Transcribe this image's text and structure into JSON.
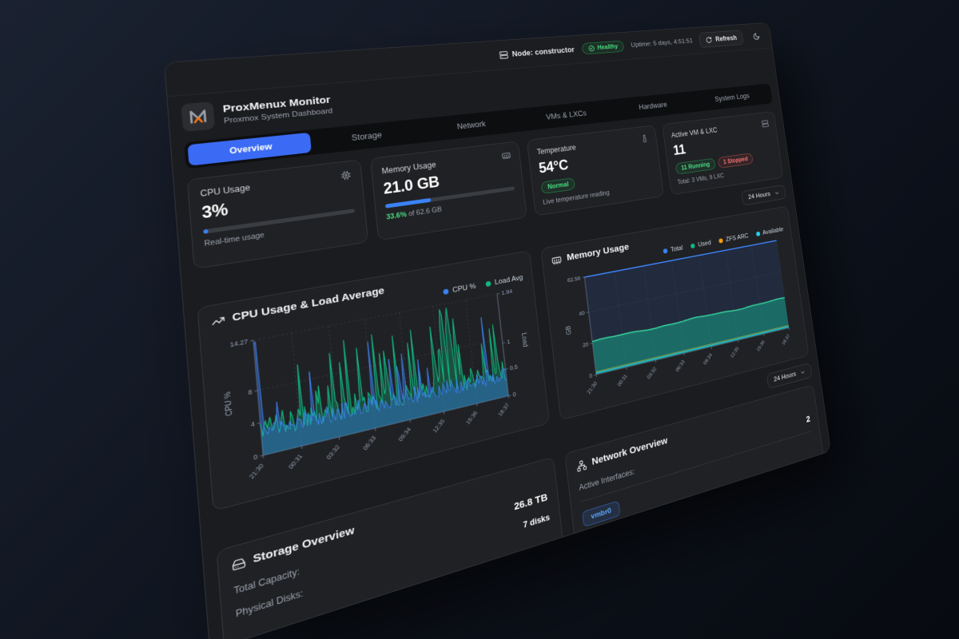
{
  "topbar": {
    "node_label": "Node: constructor",
    "health_badge": "Healthy",
    "uptime": "Uptime: 5 days, 4:51:51",
    "refresh_label": "Refresh"
  },
  "header": {
    "title": "ProxMenux Monitor",
    "subtitle": "Proxmox System Dashboard"
  },
  "tabs": {
    "items": [
      {
        "label": "Overview",
        "active": true
      },
      {
        "label": "Storage"
      },
      {
        "label": "Network"
      },
      {
        "label": "VMs & LXCs"
      },
      {
        "label": "Hardware"
      },
      {
        "label": "System Logs"
      }
    ]
  },
  "stats": {
    "cpu": {
      "label": "CPU Usage",
      "value": "3%",
      "percent": 3,
      "caption": "Real-time usage"
    },
    "memory": {
      "label": "Memory Usage",
      "value": "21.0 GB",
      "percent": 33.6,
      "caption_highlight": "33.6%",
      "caption_rest": " of 62.6 GB"
    },
    "temperature": {
      "label": "Temperature",
      "value": "54°C",
      "badge": "Normal",
      "caption": "Live temperature reading"
    },
    "vms": {
      "label": "Active VM & LXC",
      "value": "11",
      "running_badge": "11 Running",
      "stopped_badge": "1 Stopped",
      "caption": "Total: 3 VMs, 9 LXC"
    }
  },
  "range_selector": {
    "value": "24 Hours"
  },
  "charts": {
    "cpu": {
      "title": "CPU Usage & Load Average",
      "legend": [
        {
          "label": "CPU %",
          "color": "#3b82f6"
        },
        {
          "label": "Load Avg",
          "color": "#10b981"
        }
      ],
      "y_left_label": "CPU %",
      "y_right_label": "Load",
      "y_left_max": 14.27,
      "y_right_max": 1.94,
      "y_left_ticks": [
        [
          14.27,
          "14.27"
        ],
        [
          8,
          "8"
        ],
        [
          4,
          "4"
        ],
        [
          0,
          "0"
        ]
      ],
      "y_right_ticks": [
        [
          1.94,
          "1.94"
        ],
        [
          1,
          "1"
        ],
        [
          0.5,
          "0.5"
        ],
        [
          0,
          "0"
        ]
      ],
      "x_labels": [
        "21:30",
        "00:31",
        "03:32",
        "06:33",
        "09:34",
        "12:35",
        "15:36",
        "18:37"
      ],
      "cpu_series": {
        "n": 170,
        "seed": 11,
        "base_min": 2.0,
        "base_var": 2.2,
        "spike_chance": 0.05,
        "spike_min": 5.5,
        "spike_var": 8.0,
        "start_peak": 13.2
      },
      "load_series": {
        "base_min": 0.28,
        "base_var": 0.4,
        "spike_chance": 0.12,
        "spike_min": 0.8,
        "spike_var": 0.9,
        "cluster_start": 0.7,
        "cluster_end": 0.79,
        "cluster_chance": 0.45,
        "cluster_min": 1.1,
        "cluster_var": 0.8
      }
    },
    "memory": {
      "title": "Memory Usage",
      "legend": [
        {
          "label": "Total",
          "color": "#3b82f6"
        },
        {
          "label": "Used",
          "color": "#10b981"
        },
        {
          "label": "ZFS ARC",
          "color": "#f59e0b"
        },
        {
          "label": "Available",
          "color": "#22d3ee"
        }
      ],
      "y_label": "GB",
      "y_max": 62.56,
      "y_ticks": [
        [
          62.56,
          "62.56"
        ],
        [
          40,
          "40"
        ],
        [
          20,
          "20"
        ],
        [
          0,
          "0"
        ]
      ],
      "x_labels": [
        "21:30",
        "00:31",
        "03:32",
        "06:33",
        "09:34",
        "12:35",
        "15:36",
        "18:37"
      ],
      "series": {
        "n": 90,
        "total": 62.56,
        "used_base": 21.0,
        "used_wiggle": 0.45,
        "zfs_arc": 1.7,
        "available": 0.9
      }
    }
  },
  "storage": {
    "title": "Storage Overview",
    "rows": [
      {
        "label": "Total Capacity:",
        "value": "26.8 TB"
      },
      {
        "label": "Physical Disks:",
        "value": "7 disks"
      }
    ]
  },
  "network": {
    "title": "Network Overview",
    "rows": [
      {
        "label": "Active Interfaces:",
        "value": "2"
      }
    ],
    "interfaces": [
      "vmbr0"
    ]
  },
  "colors": {
    "accent_blue": "#3b6bf5",
    "progress_blue": "#3b82f6",
    "green": "#10b981",
    "green_text": "#4ade80",
    "red_text": "#f87171",
    "orange": "#f59e0b",
    "cyan": "#22d3ee",
    "panel_bg": "#1b1c1f",
    "card_bg": "#202124"
  }
}
